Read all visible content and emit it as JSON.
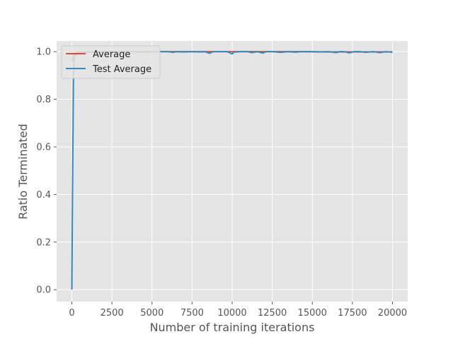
{
  "chart_data": {
    "type": "line",
    "xlabel": "Number of training iterations",
    "ylabel": "Ratio Terminated",
    "xlim": [
      -950,
      20950
    ],
    "ylim": [
      -0.05,
      1.045
    ],
    "xticks": [
      0,
      2500,
      5000,
      7500,
      10000,
      12500,
      15000,
      17500,
      20000
    ],
    "xtick_labels": [
      "0",
      "2500",
      "5000",
      "7500",
      "10000",
      "12500",
      "15000",
      "17500",
      "20000"
    ],
    "yticks": [
      0.0,
      0.2,
      0.4,
      0.6,
      0.8,
      1.0
    ],
    "ytick_labels": [
      "0.0",
      "0.2",
      "0.4",
      "0.6",
      "0.8",
      "1.0"
    ],
    "grid": true,
    "legend_position": "top-left",
    "series": [
      {
        "name": "Average",
        "color": "#E24A33",
        "x": [
          0,
          50,
          100,
          150,
          200,
          300,
          500,
          1000,
          2000,
          4000,
          6000,
          8000,
          10000,
          12000,
          14000,
          16000,
          18000,
          20000
        ],
        "y": [
          0.97,
          0.96,
          0.985,
          0.99,
          0.995,
          0.997,
          0.998,
          0.999,
          0.999,
          1.0,
          1.0,
          1.0,
          1.0,
          1.0,
          1.0,
          0.999,
          0.999,
          0.999
        ]
      },
      {
        "name": "Test Average",
        "color": "#348ABD",
        "x": [
          0,
          30,
          60,
          100,
          150,
          200,
          300,
          500,
          1000,
          1500,
          2000,
          3000,
          4000,
          4500,
          5000,
          6000,
          6300,
          6500,
          7000,
          7500,
          8000,
          8300,
          8600,
          8800,
          9200,
          9700,
          10000,
          10100,
          10500,
          11000,
          11200,
          11600,
          11900,
          12100,
          12600,
          13000,
          13500,
          14000,
          14200,
          14600,
          15000,
          15500,
          16000,
          16500,
          16700,
          17000,
          17300,
          17600,
          18000,
          18300,
          18800,
          19200,
          19600,
          20000
        ],
        "y": [
          0.0,
          0.3,
          0.55,
          0.9,
          0.97,
          0.985,
          0.99,
          0.995,
          0.998,
          0.998,
          0.999,
          1.0,
          1.0,
          0.998,
          1.0,
          1.0,
          0.997,
          1.0,
          0.999,
          1.0,
          0.999,
          1.0,
          0.993,
          1.0,
          1.0,
          1.0,
          0.99,
          0.998,
          1.0,
          1.0,
          0.996,
          1.0,
          0.994,
          1.0,
          1.0,
          0.997,
          1.0,
          0.998,
          1.0,
          1.0,
          1.0,
          0.999,
          1.0,
          0.996,
          1.0,
          1.0,
          0.995,
          1.0,
          1.0,
          0.997,
          1.0,
          0.996,
          1.0,
          0.997
        ]
      }
    ]
  }
}
